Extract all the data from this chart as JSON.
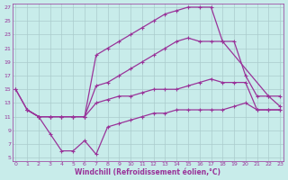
{
  "xlabel": "Windchill (Refroidissement éolien,°C)",
  "bg_color": "#c8ecea",
  "grid_color": "#aacccc",
  "line_color": "#993399",
  "xlim": [
    -0.3,
    23.3
  ],
  "ylim": [
    4.5,
    27.5
  ],
  "xticks": [
    0,
    1,
    2,
    3,
    4,
    5,
    6,
    7,
    8,
    9,
    10,
    11,
    12,
    13,
    14,
    15,
    16,
    17,
    18,
    19,
    20,
    21,
    22,
    23
  ],
  "yticks": [
    5,
    7,
    9,
    11,
    13,
    15,
    17,
    19,
    21,
    23,
    25,
    27
  ],
  "curves": [
    {
      "x": [
        0,
        1,
        2,
        3,
        4,
        5,
        6,
        7,
        8,
        9,
        10,
        11,
        12,
        13,
        14,
        15,
        16,
        17,
        18,
        22,
        23
      ],
      "y": [
        15,
        12,
        11,
        11,
        11,
        11,
        11,
        20,
        21,
        22,
        23,
        24,
        25,
        26,
        26.5,
        27,
        27,
        27,
        22,
        14,
        12.5
      ]
    },
    {
      "x": [
        0,
        1,
        2,
        3,
        4,
        5,
        6,
        7,
        8,
        9,
        10,
        11,
        12,
        13,
        14,
        15,
        16,
        17,
        18,
        19,
        20,
        21,
        22,
        23
      ],
      "y": [
        15,
        12,
        11,
        11,
        11,
        11,
        11,
        15.5,
        16,
        17,
        18,
        19,
        20,
        21,
        22,
        22.5,
        22,
        22,
        22,
        22,
        17,
        14,
        14,
        14
      ]
    },
    {
      "x": [
        1,
        2,
        3,
        4,
        5,
        6,
        7,
        8,
        9,
        10,
        11,
        12,
        13,
        14,
        15,
        16,
        17,
        18,
        19,
        20,
        21,
        22,
        23
      ],
      "y": [
        12,
        11,
        11,
        11,
        11,
        11,
        13,
        13.5,
        14,
        14,
        14.5,
        15,
        15,
        15,
        15.5,
        16,
        16.5,
        16,
        16,
        16,
        12,
        12,
        12
      ]
    },
    {
      "x": [
        1,
        2,
        3,
        4,
        5,
        6,
        7,
        8,
        9,
        10,
        11,
        12,
        13,
        14,
        15,
        16,
        17,
        18,
        19,
        20,
        21,
        22,
        23
      ],
      "y": [
        12,
        11,
        8.5,
        6,
        6,
        7.5,
        5.5,
        9.5,
        10,
        10.5,
        11,
        11.5,
        11.5,
        12,
        12,
        12,
        12,
        12,
        12.5,
        13,
        12,
        12,
        12
      ]
    }
  ]
}
